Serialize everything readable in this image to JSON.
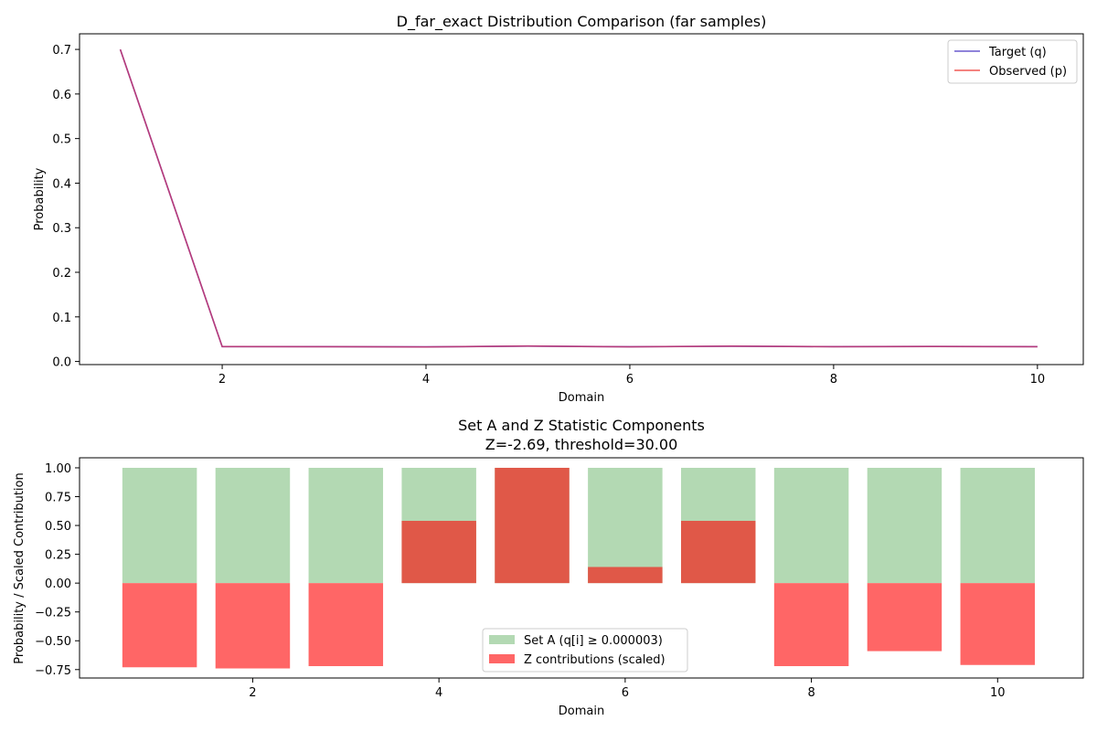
{
  "chart_data": [
    {
      "type": "line",
      "title": "D_far_exact Distribution Comparison (far samples)",
      "xlabel": "Domain",
      "ylabel": "Probability",
      "xlim": [
        0.6,
        10.45
      ],
      "ylim": [
        -0.007,
        0.735
      ],
      "xticks": [
        2,
        4,
        6,
        8,
        10
      ],
      "yticks": [
        0.0,
        0.1,
        0.2,
        0.3,
        0.4,
        0.5,
        0.6,
        0.7
      ],
      "ytick_labels": [
        "0.0",
        "0.1",
        "0.2",
        "0.3",
        "0.4",
        "0.5",
        "0.6",
        "0.7"
      ],
      "legend_position": "top-right",
      "grid": false,
      "x": [
        1,
        2,
        3,
        4,
        5,
        6,
        7,
        8,
        9,
        10
      ],
      "series": [
        {
          "name": "Target (q)",
          "color": "#6a5acd",
          "values": [
            0.7,
            0.0333,
            0.0333,
            0.0328,
            0.0343,
            0.0331,
            0.0341,
            0.0333,
            0.0336,
            0.0333
          ]
        },
        {
          "name": "Observed (p)",
          "color": "#f05a55",
          "values": [
            0.7,
            0.0333,
            0.0332,
            0.0326,
            0.0346,
            0.0328,
            0.0344,
            0.0331,
            0.0337,
            0.0332
          ]
        }
      ],
      "overlap_color": "#c0306a"
    },
    {
      "type": "bar",
      "title": "Set A and Z Statistic Components",
      "subtitle": "Z=-2.69, threshold=30.00",
      "xlabel": "Domain",
      "ylabel": "Probability / Scaled Contribution",
      "xlim": [
        0.14,
        10.92
      ],
      "ylim": [
        -0.823,
        1.087
      ],
      "xticks": [
        2,
        4,
        6,
        8,
        10
      ],
      "yticks": [
        -0.75,
        -0.5,
        -0.25,
        0.0,
        0.25,
        0.5,
        0.75,
        1.0
      ],
      "ytick_labels": [
        "−0.75",
        "−0.50",
        "−0.25",
        "0.00",
        "0.25",
        "0.50",
        "0.75",
        "1.00"
      ],
      "legend_position": "lower-center",
      "grid": false,
      "x": [
        1,
        2,
        3,
        4,
        5,
        6,
        7,
        8,
        9,
        10
      ],
      "bar_width": 0.8,
      "series": [
        {
          "name": "Set A (q[i] ≥ 0.000003)",
          "color": "#b3d9b3",
          "values": [
            1,
            1,
            1,
            1,
            1,
            1,
            1,
            1,
            1,
            1
          ]
        },
        {
          "name": "Z contributions (scaled)",
          "color": "#ff6666",
          "values": [
            -0.73,
            -0.74,
            -0.72,
            0.54,
            1.0,
            0.14,
            0.54,
            -0.72,
            -0.59,
            -0.71
          ]
        }
      ],
      "overlap_color": "#e05848"
    }
  ]
}
